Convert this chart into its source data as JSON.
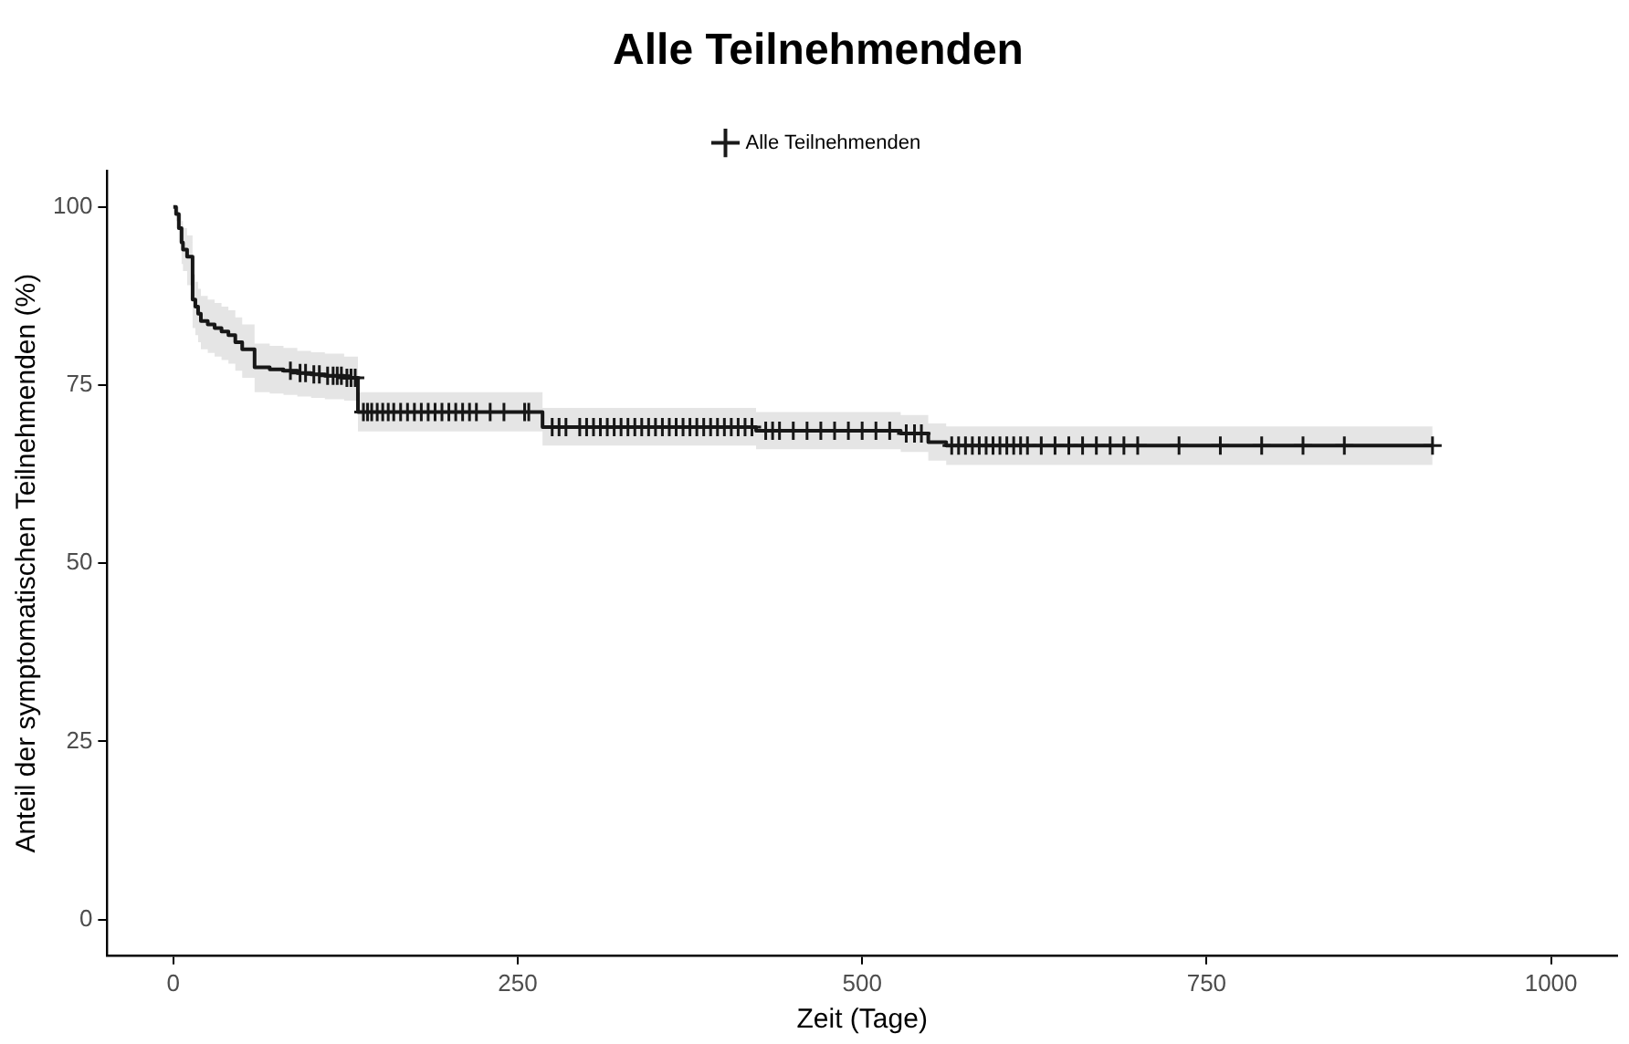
{
  "chart_data": {
    "type": "step",
    "title": "Alle Teilnehmenden",
    "xlabel": "Zeit (Tage)",
    "ylabel": "Anteil der symptomatischen Teilnehmenden (%)",
    "xlim": [
      -48,
      1048
    ],
    "xticks": [
      0,
      250,
      500,
      750,
      1000
    ],
    "ylim": [
      -5,
      105
    ],
    "yticks": [
      0,
      25,
      50,
      75,
      100
    ],
    "grid": false,
    "legend": "top",
    "line_style": "solid",
    "series": [
      {
        "name": "Alle Teilnehmenden",
        "color": "#1a1a1a",
        "marker": "none",
        "x": [
          0,
          2,
          4,
          6,
          7,
          10,
          14,
          16,
          18,
          20,
          25,
          30,
          35,
          40,
          45,
          50,
          59,
          70,
          80,
          90,
          100,
          110,
          124,
          134,
          268,
          423,
          528,
          548,
          561,
          914
        ],
        "values": [
          100,
          99,
          97,
          95,
          94,
          93,
          87,
          86,
          85,
          84,
          83.5,
          83,
          82.5,
          82,
          81,
          80,
          77.5,
          77.2,
          77,
          76.7,
          76.5,
          76.3,
          76,
          71.2,
          69.1,
          68.6,
          68.2,
          67,
          66.5,
          66.5
        ],
        "lower": [
          100,
          98,
          95,
          92,
          91,
          89,
          83,
          82,
          81,
          80,
          79.5,
          79,
          78.5,
          78,
          77,
          76,
          74,
          73.8,
          73.6,
          73.4,
          73.2,
          73,
          72.8,
          68.5,
          66.5,
          66,
          65.6,
          64.4,
          63.8,
          63.8
        ],
        "upper": [
          100,
          100,
          99,
          98,
          97,
          96,
          90.5,
          89.5,
          88.5,
          87.5,
          87,
          86.5,
          86,
          85.5,
          84.5,
          83.5,
          80.8,
          80.5,
          80.2,
          79.8,
          79.6,
          79.4,
          79,
          74,
          71.8,
          71.2,
          70.8,
          69.6,
          69.2,
          69.2
        ]
      },
      {
        "type": "scatter",
        "color": "#1a1a1a",
        "marker": "cross",
        "x": [
          85,
          92,
          96,
          102,
          106,
          112,
          116,
          119,
          122,
          126,
          129,
          132,
          138,
          141,
          144,
          148,
          152,
          156,
          160,
          165,
          170,
          175,
          180,
          185,
          190,
          195,
          200,
          205,
          210,
          215,
          220,
          230,
          240,
          255,
          258,
          275,
          280,
          285,
          295,
          300,
          305,
          310,
          315,
          320,
          325,
          330,
          335,
          340,
          345,
          350,
          355,
          360,
          365,
          370,
          375,
          380,
          385,
          390,
          395,
          400,
          405,
          410,
          415,
          420,
          430,
          435,
          440,
          450,
          460,
          470,
          480,
          490,
          500,
          510,
          520,
          532,
          538,
          543,
          565,
          570,
          575,
          580,
          585,
          590,
          595,
          600,
          605,
          610,
          615,
          620,
          630,
          640,
          650,
          660,
          670,
          680,
          690,
          700,
          730,
          760,
          790,
          820,
          850,
          914
        ],
        "values": [
          77,
          76.7,
          76.7,
          76.5,
          76.5,
          76.3,
          76.3,
          76.3,
          76.3,
          76,
          76,
          76,
          71.2,
          71.2,
          71.2,
          71.2,
          71.2,
          71.2,
          71.2,
          71.2,
          71.2,
          71.2,
          71.2,
          71.2,
          71.2,
          71.2,
          71.2,
          71.2,
          71.2,
          71.2,
          71.2,
          71.2,
          71.2,
          71.2,
          71.2,
          69.1,
          69.1,
          69.1,
          69.1,
          69.1,
          69.1,
          69.1,
          69.1,
          69.1,
          69.1,
          69.1,
          69.1,
          69.1,
          69.1,
          69.1,
          69.1,
          69.1,
          69.1,
          69.1,
          69.1,
          69.1,
          69.1,
          69.1,
          69.1,
          69.1,
          69.1,
          69.1,
          69.1,
          69.1,
          68.6,
          68.6,
          68.6,
          68.6,
          68.6,
          68.6,
          68.6,
          68.6,
          68.6,
          68.6,
          68.6,
          68.2,
          68.2,
          68.2,
          66.5,
          66.5,
          66.5,
          66.5,
          66.5,
          66.5,
          66.5,
          66.5,
          66.5,
          66.5,
          66.5,
          66.5,
          66.5,
          66.5,
          66.5,
          66.5,
          66.5,
          66.5,
          66.5,
          66.5,
          66.5,
          66.5,
          66.5,
          66.5,
          66.5,
          66.5
        ]
      }
    ]
  }
}
